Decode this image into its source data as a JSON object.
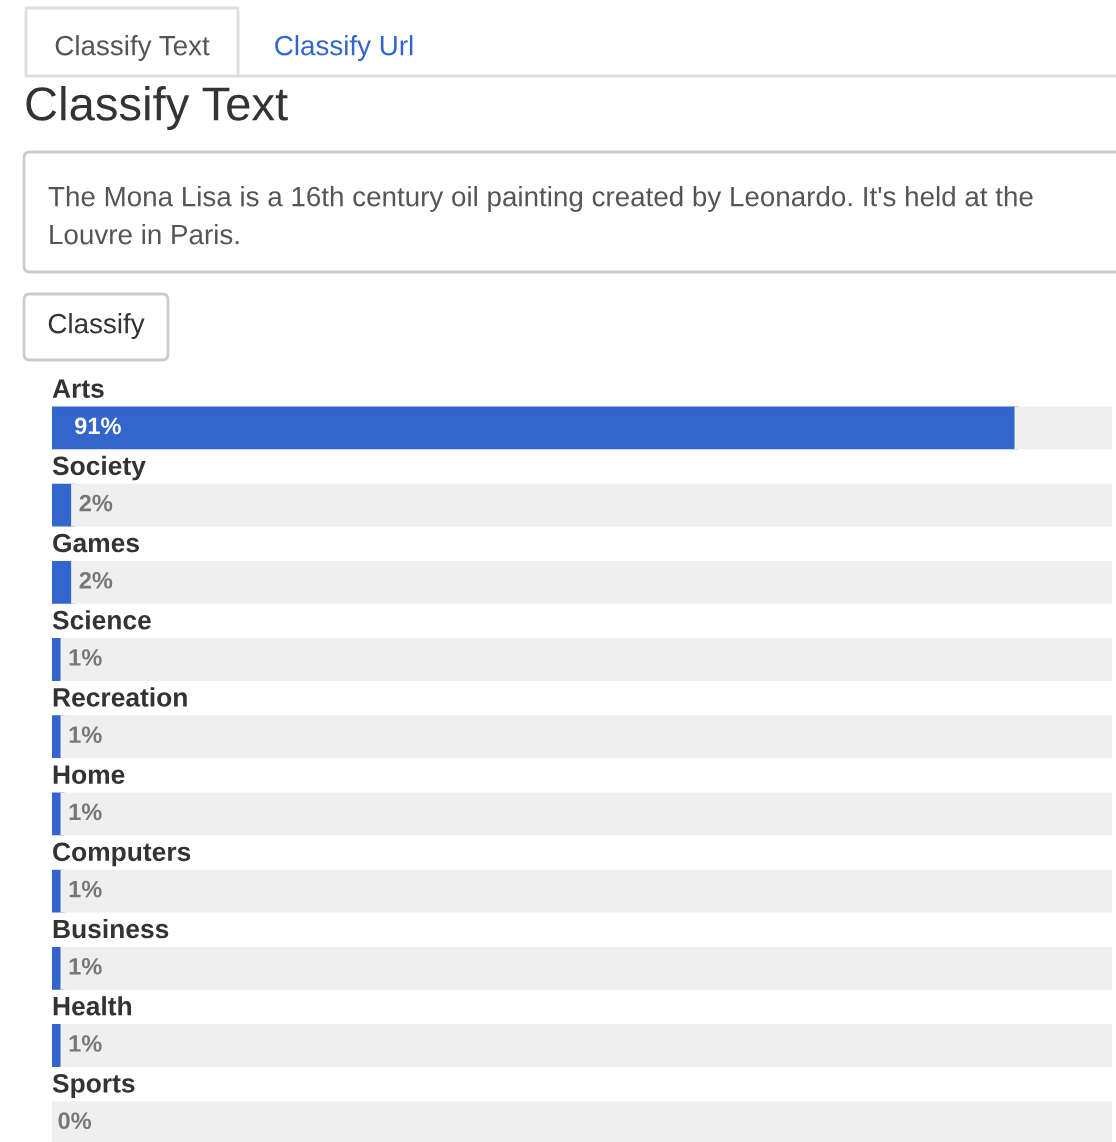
{
  "chart_data": {
    "type": "bar",
    "orientation": "horizontal",
    "stacked": true,
    "title": "Classify Text",
    "annotations": [
      "Classify Text",
      "Classify Url",
      "The Mona Lisa is a 16th century oil painting created by Leonardo. It's held at the Louvre in Paris.",
      "Classify"
    ],
    "categories": [
      "Arts",
      "Society",
      "Games",
      "Science",
      "Recreation",
      "Home",
      "Computers",
      "Business",
      "Health",
      "Sports"
    ],
    "series": [
      {
        "color": "#3366cc",
        "values": [
          91,
          2,
          2,
          1,
          1,
          1,
          1,
          1,
          1,
          0
        ],
        "value_labels": [
          "91%",
          "2%",
          "2%",
          "1%",
          "1%",
          "1%",
          "1%",
          "1%",
          "1%",
          "0%"
        ]
      },
      {
        "color": "#efefef",
        "values": [
          9,
          98,
          98,
          99,
          99,
          99,
          99,
          99,
          99,
          100
        ]
      }
    ],
    "xlim": [
      0,
      100
    ]
  }
}
